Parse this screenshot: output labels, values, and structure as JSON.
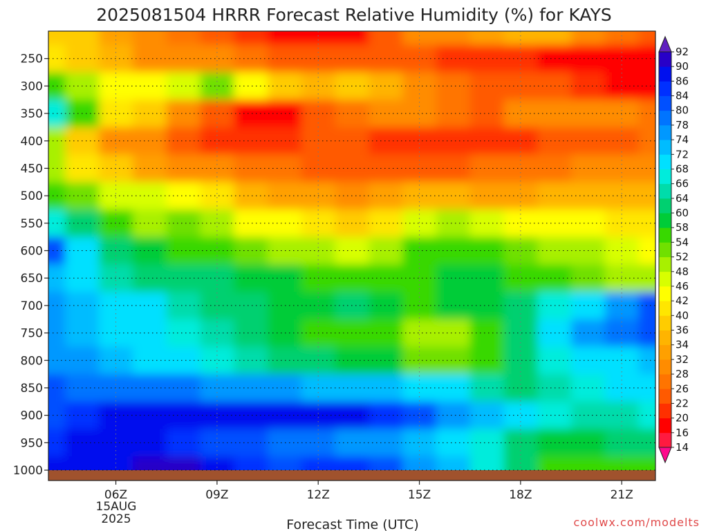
{
  "chart_data": {
    "type": "heatmap",
    "title": "2025081504 HRRR Forecast Relative Humidity (%) for KAYS",
    "xlabel": "Forecast Time (UTC)",
    "ylabel": "",
    "x_ticks": [
      "06Z",
      "09Z",
      "12Z",
      "15Z",
      "18Z",
      "21Z"
    ],
    "x_tick_hours": [
      6,
      9,
      12,
      15,
      18,
      21
    ],
    "x_date_lines": [
      "15AUG",
      "2025"
    ],
    "xlim_hours": [
      4,
      22
    ],
    "y_ticks": [
      250,
      300,
      350,
      400,
      450,
      500,
      550,
      600,
      650,
      700,
      750,
      800,
      850,
      900,
      950,
      1000
    ],
    "ylim_hpa": [
      200,
      1000
    ],
    "grid": true,
    "colorbar": {
      "placement": "right",
      "levels": [
        14,
        16,
        20,
        22,
        26,
        28,
        32,
        34,
        36,
        40,
        42,
        46,
        48,
        52,
        54,
        58,
        60,
        64,
        66,
        68,
        72,
        74,
        78,
        80,
        84,
        86,
        90,
        92
      ],
      "colors": [
        "#ff0a8c",
        "#ff1a40",
        "#ff0000",
        "#ff3000",
        "#ff5a00",
        "#ff7400",
        "#ff8c00",
        "#ffa000",
        "#ffb400",
        "#ffcc00",
        "#ffe600",
        "#ffff00",
        "#d8ff00",
        "#a8f000",
        "#70e000",
        "#38d800",
        "#00cc38",
        "#00d070",
        "#00dcaa",
        "#00ecdc",
        "#00e0ff",
        "#00bcff",
        "#0098ff",
        "#0074ff",
        "#0050ff",
        "#0030ff",
        "#0010ee",
        "#2800c8",
        "#6020c0"
      ]
    },
    "x_hours": [
      4,
      5,
      6,
      7,
      8,
      9,
      10,
      11,
      12,
      13,
      14,
      15,
      16,
      17,
      18,
      19,
      20,
      21,
      22
    ],
    "y_levels_hpa": [
      200,
      250,
      300,
      350,
      400,
      450,
      500,
      550,
      600,
      650,
      700,
      750,
      800,
      850,
      900,
      950,
      1000
    ],
    "values": [
      [
        38,
        36,
        32,
        30,
        26,
        22,
        20,
        18,
        18,
        18,
        24,
        28,
        30,
        32,
        34,
        34,
        30,
        26,
        22
      ],
      [
        40,
        38,
        34,
        30,
        30,
        28,
        26,
        24,
        24,
        22,
        24,
        22,
        20,
        20,
        20,
        18,
        18,
        16,
        16
      ],
      [
        54,
        48,
        42,
        44,
        46,
        52,
        44,
        36,
        34,
        36,
        34,
        30,
        26,
        24,
        24,
        22,
        20,
        18,
        16
      ],
      [
        66,
        54,
        40,
        36,
        30,
        24,
        18,
        16,
        22,
        26,
        28,
        28,
        26,
        24,
        28,
        30,
        30,
        28,
        26
      ],
      [
        50,
        36,
        30,
        28,
        24,
        20,
        20,
        20,
        22,
        22,
        20,
        20,
        20,
        20,
        20,
        22,
        24,
        24,
        26
      ],
      [
        48,
        40,
        36,
        32,
        30,
        28,
        26,
        26,
        24,
        24,
        24,
        24,
        24,
        26,
        26,
        26,
        28,
        28,
        28
      ],
      [
        56,
        52,
        46,
        46,
        42,
        40,
        34,
        32,
        32,
        30,
        32,
        34,
        34,
        32,
        32,
        34,
        34,
        34,
        34
      ],
      [
        66,
        60,
        56,
        50,
        52,
        48,
        44,
        42,
        40,
        36,
        40,
        46,
        48,
        46,
        44,
        44,
        42,
        40,
        40
      ],
      [
        80,
        68,
        60,
        58,
        56,
        56,
        52,
        50,
        48,
        46,
        50,
        54,
        56,
        54,
        52,
        50,
        48,
        46,
        44
      ],
      [
        72,
        68,
        64,
        62,
        60,
        60,
        58,
        58,
        54,
        54,
        54,
        56,
        58,
        58,
        56,
        54,
        52,
        50,
        48
      ],
      [
        76,
        72,
        70,
        68,
        64,
        62,
        60,
        58,
        58,
        60,
        58,
        56,
        58,
        58,
        62,
        66,
        70,
        76,
        80
      ],
      [
        74,
        72,
        70,
        68,
        66,
        64,
        60,
        58,
        56,
        54,
        56,
        50,
        50,
        54,
        60,
        68,
        74,
        78,
        80
      ],
      [
        76,
        74,
        72,
        70,
        68,
        66,
        64,
        62,
        60,
        58,
        58,
        52,
        52,
        56,
        60,
        66,
        68,
        70,
        72
      ],
      [
        80,
        78,
        78,
        78,
        78,
        76,
        74,
        74,
        72,
        72,
        72,
        70,
        68,
        64,
        62,
        64,
        66,
        68,
        70
      ],
      [
        82,
        84,
        86,
        86,
        88,
        88,
        88,
        86,
        86,
        86,
        84,
        80,
        76,
        72,
        68,
        66,
        64,
        64,
        66
      ],
      [
        84,
        86,
        88,
        86,
        84,
        82,
        80,
        78,
        78,
        76,
        74,
        72,
        70,
        66,
        60,
        58,
        58,
        60,
        62
      ],
      [
        86,
        88,
        88,
        90,
        90,
        86,
        84,
        82,
        84,
        84,
        82,
        76,
        72,
        66,
        60,
        56,
        54,
        54,
        56
      ]
    ]
  },
  "watermark": "coolwx.com/modelts"
}
